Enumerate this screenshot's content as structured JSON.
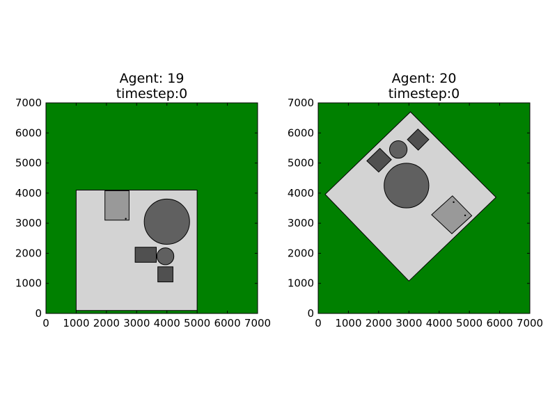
{
  "chart_data": [
    {
      "type": "map",
      "title_lines": [
        "Agent: 19",
        "timestep:0"
      ],
      "xlim": [
        0,
        7000
      ],
      "ylim": [
        0,
        7000
      ],
      "xticks": [
        0,
        1000,
        2000,
        3000,
        4000,
        5000,
        6000,
        7000
      ],
      "yticks": [
        0,
        1000,
        2000,
        3000,
        4000,
        5000,
        6000,
        7000
      ],
      "background_color": "#008000",
      "room": {
        "points": [
          [
            1000,
            100
          ],
          [
            5000,
            100
          ],
          [
            5000,
            4100
          ],
          [
            1000,
            4100
          ]
        ],
        "color": "#d3d3d3"
      },
      "furniture": [
        {
          "kind": "rect",
          "points": [
            [
              1950,
              3100
            ],
            [
              2750,
              3100
            ],
            [
              2750,
              4080
            ],
            [
              1950,
              4080
            ]
          ],
          "color": "#999999"
        },
        {
          "kind": "circle",
          "cx": 4000,
          "cy": 3050,
          "r": 750,
          "color": "#606060"
        },
        {
          "kind": "rect",
          "points": [
            [
              2950,
              1700
            ],
            [
              3650,
              1700
            ],
            [
              3650,
              2200
            ],
            [
              2950,
              2200
            ]
          ],
          "color": "#505050"
        },
        {
          "kind": "circle",
          "cx": 3950,
          "cy": 1900,
          "r": 280,
          "color": "#606060"
        },
        {
          "kind": "rect",
          "points": [
            [
              3700,
              1050
            ],
            [
              4200,
              1050
            ],
            [
              4200,
              1550
            ],
            [
              3700,
              1550
            ]
          ],
          "color": "#505050"
        }
      ],
      "markers": [
        [
          2640,
          3150
        ]
      ]
    },
    {
      "type": "map",
      "title_lines": [
        "Agent: 20",
        "timestep:0"
      ],
      "xlim": [
        0,
        7000
      ],
      "ylim": [
        0,
        7000
      ],
      "xticks": [
        0,
        1000,
        2000,
        3000,
        4000,
        5000,
        6000,
        7000
      ],
      "yticks": [
        0,
        1000,
        2000,
        3000,
        4000,
        5000,
        6000,
        7000
      ],
      "background_color": "#008000",
      "room": {
        "points": [
          [
            3000,
            1080
          ],
          [
            5880,
            3860
          ],
          [
            3050,
            6700
          ],
          [
            230,
            3960
          ]
        ],
        "color": "#d3d3d3"
      },
      "furniture": [
        {
          "kind": "rect",
          "points": [
            [
              2950,
              5780
            ],
            [
              3310,
              5430
            ],
            [
              3660,
              5780
            ],
            [
              3300,
              6130
            ]
          ],
          "color": "#505050"
        },
        {
          "kind": "circle",
          "cx": 2650,
          "cy": 5450,
          "r": 290,
          "color": "#606060"
        },
        {
          "kind": "rect",
          "points": [
            [
              1610,
              5070
            ],
            [
              2000,
              4700
            ],
            [
              2420,
              5110
            ],
            [
              2040,
              5490
            ]
          ],
          "color": "#505050"
        },
        {
          "kind": "circle",
          "cx": 2920,
          "cy": 4250,
          "r": 740,
          "color": "#606060"
        },
        {
          "kind": "rect",
          "points": [
            [
              3750,
              3280
            ],
            [
              4420,
              2650
            ],
            [
              5080,
              3250
            ],
            [
              4440,
              3910
            ]
          ],
          "color": "#999999"
        }
      ],
      "markers": [
        [
          4480,
          3700
        ],
        [
          4860,
          3260
        ]
      ]
    }
  ]
}
